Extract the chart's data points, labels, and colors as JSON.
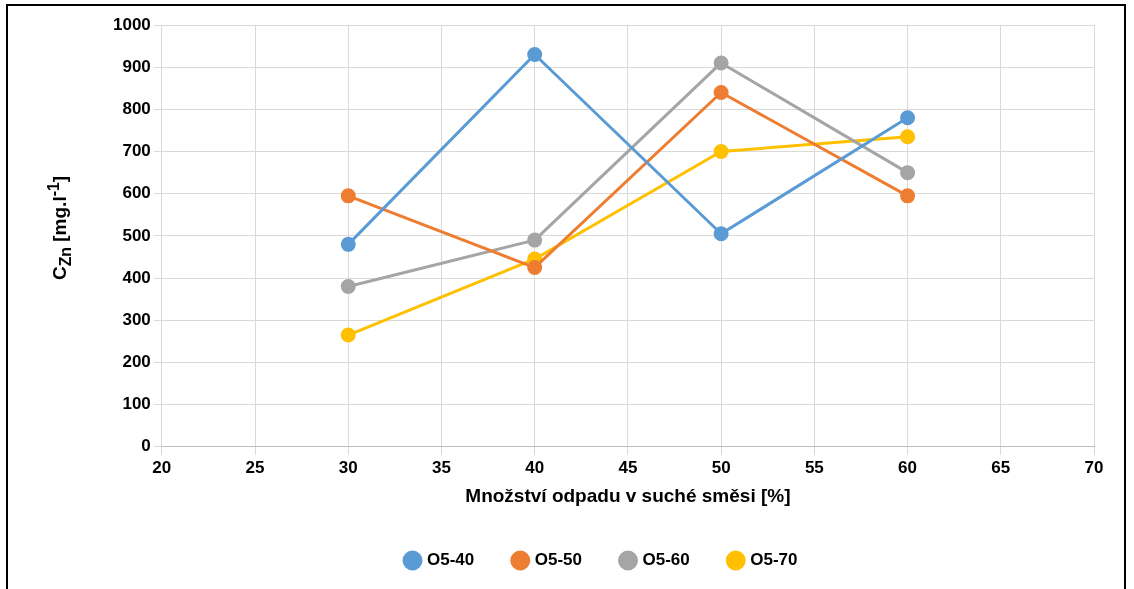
{
  "chart_data": {
    "type": "line",
    "xlabel": "Množství odpadu v suché směsi [%]",
    "ylabel": "C$_{Zn}$ [mg.l$^{-1}$]",
    "x": [
      30,
      40,
      50,
      60
    ],
    "series": [
      {
        "name": "O5-40",
        "color": "#5b9bd5",
        "values": [
          480,
          930,
          505,
          780
        ]
      },
      {
        "name": "O5-50",
        "color": "#ed7d31",
        "values": [
          595,
          425,
          840,
          595
        ]
      },
      {
        "name": "O5-60",
        "color": "#a5a5a5",
        "values": [
          380,
          490,
          910,
          650
        ]
      },
      {
        "name": "O5-70",
        "color": "#ffc000",
        "values": [
          265,
          445,
          700,
          735
        ]
      }
    ],
    "xlim": [
      20,
      70
    ],
    "xticks": [
      20,
      25,
      30,
      35,
      40,
      45,
      50,
      55,
      60,
      65,
      70
    ],
    "ylim": [
      0,
      1000
    ],
    "yticks": [
      0,
      100,
      200,
      300,
      400,
      500,
      600,
      700,
      800,
      900,
      1000
    ],
    "grid": true,
    "legend": "bottom",
    "marker": "circle",
    "line_style": "solid"
  }
}
